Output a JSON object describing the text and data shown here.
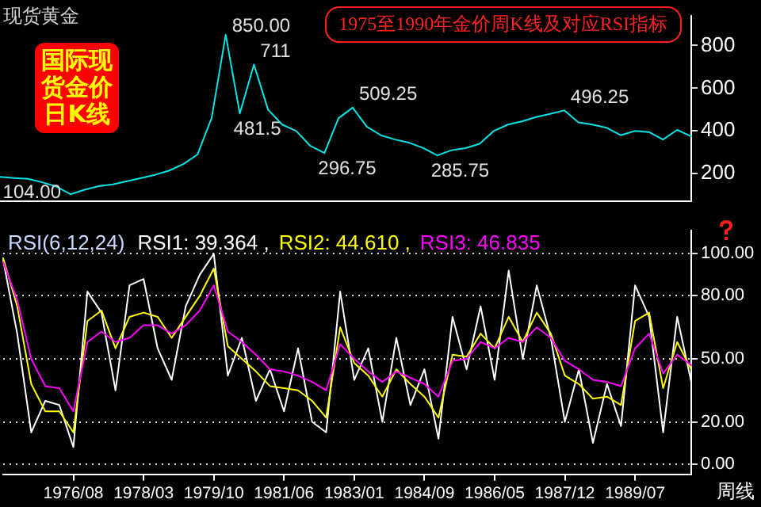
{
  "chart_data": [
    {
      "type": "line",
      "title": "1975至1990年金价周K线及对应RSI指标",
      "subtitle": "现货黄金",
      "annotations": [
        "国际现货金价日K线",
        "850.00",
        "711",
        "481.5",
        "509.25",
        "296.75",
        "285.75",
        "496.25",
        "104.00"
      ],
      "categories": [
        null,
        null,
        null,
        null,
        null,
        null,
        null,
        null,
        null,
        null,
        null,
        null,
        null,
        null,
        null,
        null,
        null,
        null,
        null,
        null,
        null,
        null,
        null,
        null,
        null,
        null,
        null,
        null,
        null,
        null,
        null,
        null,
        null,
        null,
        null,
        null,
        null,
        null,
        null,
        null,
        null,
        null,
        null,
        null,
        null,
        null,
        null,
        null,
        null,
        null
      ],
      "series": [
        {
          "color": "#00e5e5",
          "values": [
            185,
            180,
            176,
            160,
            140,
            104,
            125,
            142,
            150,
            165,
            180,
            195,
            215,
            245,
            290,
            460,
            850,
            481.5,
            711,
            500,
            430,
            400,
            330,
            296.75,
            460,
            509.25,
            420,
            380,
            360,
            345,
            320,
            285.75,
            310,
            320,
            340,
            400,
            430,
            445,
            465,
            480,
            496.25,
            440,
            430,
            415,
            380,
            400,
            395,
            360,
            405,
            375
          ]
        }
      ],
      "ylim": [
        70,
        940
      ],
      "yticks": [
        200,
        400,
        600,
        800
      ],
      "tick_labels": "y"
    },
    {
      "type": "line",
      "legend_title": "RSI(6,12,24)",
      "legend": "top left",
      "annotations": [
        "周线"
      ],
      "categories": [
        null,
        null,
        null,
        null,
        null,
        "1976/08",
        null,
        null,
        null,
        null,
        "1978/03",
        null,
        null,
        null,
        null,
        "1979/10",
        null,
        null,
        null,
        null,
        "1981/06",
        null,
        null,
        null,
        null,
        "1983/01",
        null,
        null,
        null,
        null,
        "1984/09",
        null,
        null,
        null,
        null,
        "1986/05",
        null,
        null,
        null,
        null,
        "1987/12",
        null,
        null,
        null,
        null,
        "1989/07",
        null,
        null,
        null,
        null
      ],
      "series": [
        {
          "name": "RSI1: 39.364 ,",
          "color": "#ffffff",
          "values": [
            97,
            62,
            15,
            30,
            28,
            8,
            82,
            72,
            35,
            85,
            88,
            55,
            40,
            75,
            90,
            100,
            42,
            60,
            30,
            45,
            25,
            55,
            20,
            15,
            82,
            40,
            55,
            20,
            60,
            28,
            45,
            12,
            70,
            45,
            75,
            40,
            92,
            50,
            85,
            60,
            20,
            45,
            10,
            38,
            18,
            85,
            70,
            15,
            70,
            39
          ]
        },
        {
          "name": "RSI2: 44.610 ,",
          "color": "#ffff00",
          "values": [
            98,
            75,
            38,
            25,
            25,
            15,
            68,
            73,
            55,
            70,
            72,
            70,
            60,
            70,
            80,
            93,
            56,
            50,
            44,
            37,
            36,
            35,
            30,
            22,
            65,
            48,
            42,
            32,
            45,
            38,
            32,
            22,
            52,
            51,
            62,
            55,
            70,
            58,
            72,
            62,
            42,
            38,
            31,
            32,
            28,
            68,
            72,
            36,
            58,
            45
          ]
        },
        {
          "name": "RSI3: 46.835",
          "color": "#ff00ff",
          "values": [
            96,
            78,
            50,
            37,
            36,
            25,
            58,
            63,
            58,
            60,
            66,
            66,
            62,
            66,
            73,
            85,
            63,
            58,
            52,
            45,
            44,
            42,
            39,
            35,
            57,
            50,
            44,
            39,
            44,
            41,
            38,
            32,
            49,
            50,
            58,
            55,
            60,
            58,
            65,
            60,
            49,
            45,
            40,
            39,
            37,
            55,
            62,
            43,
            52,
            47
          ]
        }
      ],
      "ylim": [
        -5,
        111
      ],
      "yticks": [
        {
          "value": 0,
          "label": "0.00"
        },
        {
          "value": 20,
          "label": "20.00"
        },
        {
          "value": 50,
          "label": "50.00"
        },
        {
          "value": 80,
          "label": "80.00"
        },
        {
          "value": 100,
          "label": "100.00"
        }
      ],
      "grid": "y"
    }
  ]
}
